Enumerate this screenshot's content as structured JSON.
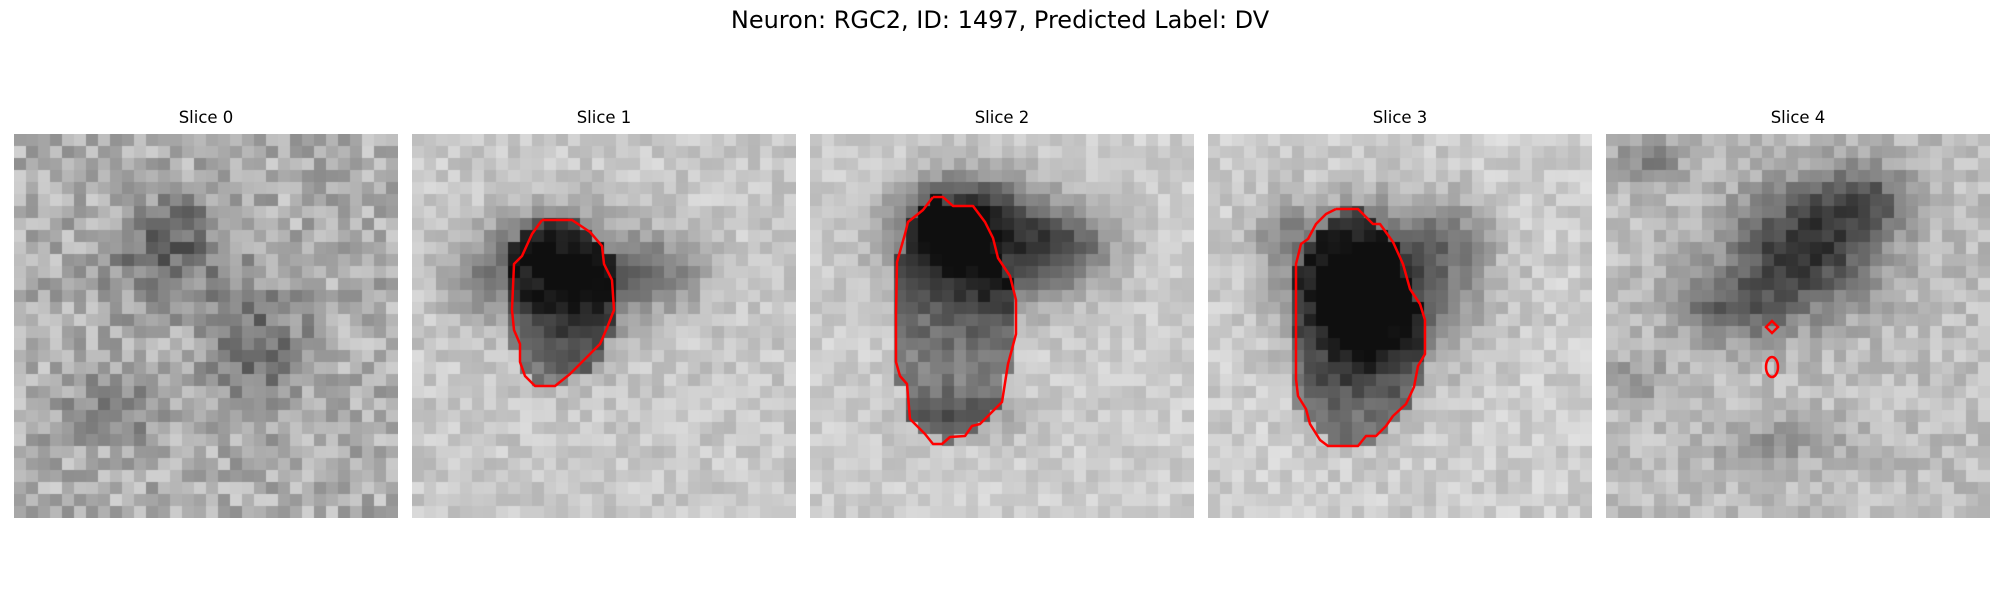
{
  "figure": {
    "title": "Neuron: RGC2, ID: 1497, Predicted Label: DV",
    "contour_color": "#ff0000"
  },
  "panels": [
    {
      "title": "Slice 0"
    },
    {
      "title": "Slice 1"
    },
    {
      "title": "Slice 2"
    },
    {
      "title": "Slice 3"
    },
    {
      "title": "Slice 4"
    }
  ]
}
